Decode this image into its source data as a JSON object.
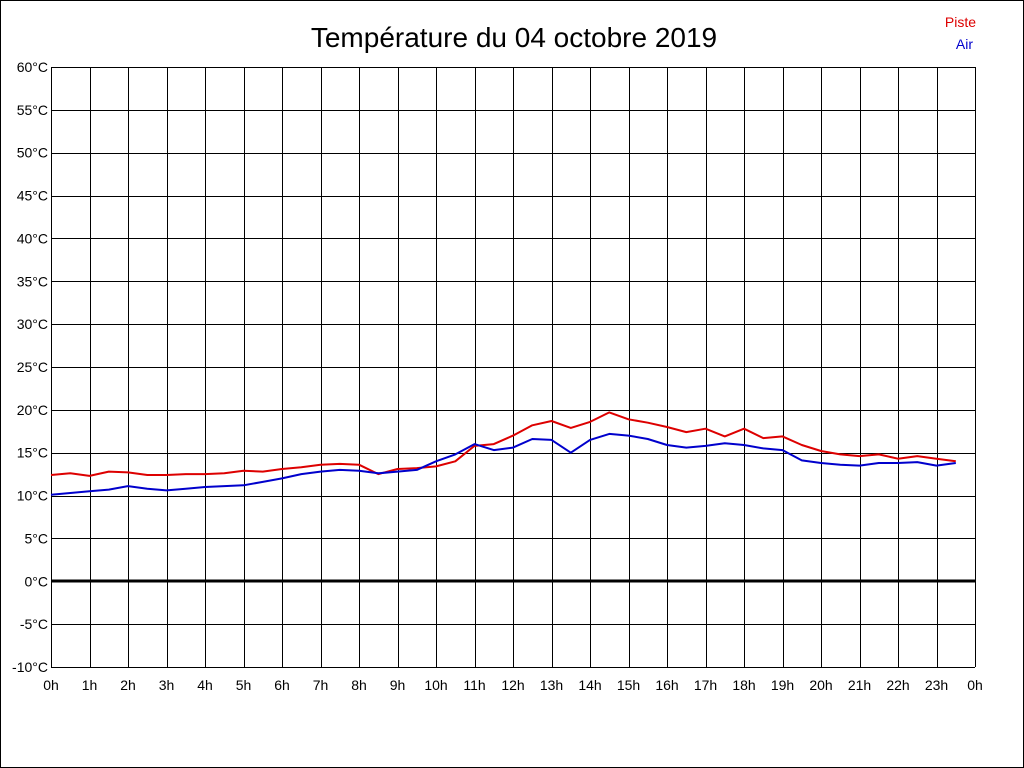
{
  "chart_data": {
    "type": "line",
    "title": "Température du 04 octobre 2019",
    "xlabel": "",
    "ylabel": "",
    "x_tick_labels": [
      "0h",
      "1h",
      "2h",
      "3h",
      "4h",
      "5h",
      "6h",
      "7h",
      "8h",
      "9h",
      "10h",
      "11h",
      "12h",
      "13h",
      "14h",
      "15h",
      "16h",
      "17h",
      "18h",
      "19h",
      "20h",
      "21h",
      "22h",
      "23h",
      "0h"
    ],
    "y_tick_labels": [
      "60°C",
      "55°C",
      "50°C",
      "45°C",
      "40°C",
      "35°C",
      "30°C",
      "25°C",
      "20°C",
      "15°C",
      "10°C",
      "5°C",
      "0°C",
      "-5°C",
      "-10°C"
    ],
    "xlim": [
      0,
      24
    ],
    "ylim": [
      -10,
      60
    ],
    "grid": true,
    "legend_position": "top-right",
    "x": [
      0,
      0.5,
      1,
      1.5,
      2,
      2.5,
      3,
      3.5,
      4,
      4.5,
      5,
      5.5,
      6,
      6.5,
      7,
      7.5,
      8,
      8.5,
      9,
      9.5,
      10,
      10.5,
      11,
      11.5,
      12,
      12.5,
      13,
      13.5,
      14,
      14.5,
      15,
      15.5,
      16,
      16.5,
      17,
      17.5,
      18,
      18.5,
      19,
      19.5,
      20,
      20.5,
      21,
      21.5,
      22,
      22.5,
      23,
      23.5
    ],
    "series": [
      {
        "name": "Piste",
        "color": "#dd0000",
        "values": [
          12.4,
          12.6,
          12.3,
          12.8,
          12.7,
          12.4,
          12.4,
          12.5,
          12.5,
          12.6,
          12.9,
          12.8,
          13.1,
          13.3,
          13.6,
          13.7,
          13.6,
          12.5,
          13.1,
          13.2,
          13.4,
          14.0,
          15.8,
          16.0,
          17.0,
          18.2,
          18.7,
          17.9,
          18.6,
          19.7,
          18.9,
          18.5,
          18.0,
          17.4,
          17.8,
          16.9,
          17.8,
          16.7,
          16.9,
          15.9,
          15.2,
          14.8,
          14.6,
          14.8,
          14.3,
          14.6,
          14.3,
          14.0
        ]
      },
      {
        "name": "Air",
        "color": "#0000cc",
        "values": [
          10.1,
          10.3,
          10.5,
          10.7,
          11.1,
          10.8,
          10.6,
          10.8,
          11.0,
          11.1,
          11.2,
          11.6,
          12.0,
          12.5,
          12.8,
          13.0,
          12.9,
          12.6,
          12.8,
          13.0,
          14.0,
          14.8,
          16.0,
          15.3,
          15.6,
          16.6,
          16.5,
          15.0,
          16.5,
          17.2,
          17.0,
          16.6,
          15.9,
          15.6,
          15.8,
          16.1,
          15.9,
          15.5,
          15.3,
          14.1,
          13.8,
          13.6,
          13.5,
          13.8,
          13.8,
          13.9,
          13.5,
          13.8
        ]
      }
    ]
  }
}
